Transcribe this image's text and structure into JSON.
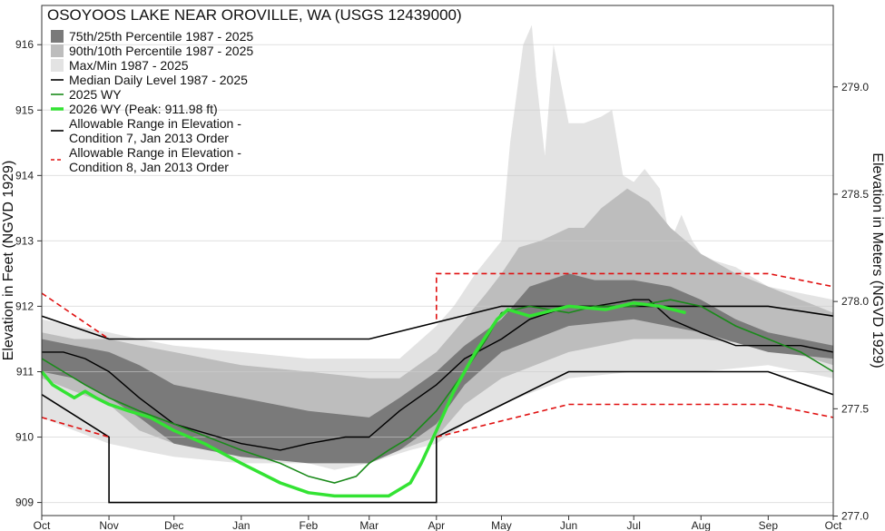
{
  "chart_data": {
    "type": "area",
    "title": "OSOYOOS LAKE NEAR OROVILLE, WA (USGS 12439000)",
    "ylabel": "Elevation in Feet (NGVD 1929)",
    "y2label": "Elevation in Meters (NGVD 1929)",
    "ylim": [
      908.8,
      916.6
    ],
    "yticks": [
      909,
      910,
      911,
      912,
      913,
      914,
      915,
      916
    ],
    "y2ticks": [
      277.0,
      277.5,
      278.0,
      278.5,
      279.0
    ],
    "xlim": [
      0,
      365
    ],
    "xticks": [
      {
        "label": "Oct",
        "day": 0
      },
      {
        "label": "Nov",
        "day": 31
      },
      {
        "label": "Dec",
        "day": 61
      },
      {
        "label": "Jan",
        "day": 92
      },
      {
        "label": "Feb",
        "day": 123
      },
      {
        "label": "Mar",
        "day": 151
      },
      {
        "label": "Apr",
        "day": 182
      },
      {
        "label": "May",
        "day": 212
      },
      {
        "label": "Jun",
        "day": 243
      },
      {
        "label": "Jul",
        "day": 273
      },
      {
        "label": "Aug",
        "day": 304
      },
      {
        "label": "Sep",
        "day": 335
      },
      {
        "label": "Oct",
        "day": 365
      }
    ],
    "grid": true,
    "legend_position": "top-left",
    "colors": {
      "maxmin": "#e3e3e3",
      "p90": "#bdbdbd",
      "p75": "#7a7a7a",
      "median": "#000000",
      "wy2025": "#1a8a1a",
      "wy2026": "#33e333",
      "cond7": "#000000",
      "cond8": "#e01010",
      "grid": "#cccccc"
    },
    "legend": [
      {
        "key": "p75",
        "label": "75th/25th Percentile 1987 - 2025",
        "style": "box"
      },
      {
        "key": "p90",
        "label": "90th/10th Percentile 1987 - 2025",
        "style": "box"
      },
      {
        "key": "maxmin",
        "label": "Max/Min 1987 - 2025",
        "style": "box"
      },
      {
        "key": "median",
        "label": "Median Daily Level 1987 - 2025",
        "style": "line"
      },
      {
        "key": "wy2025",
        "label": "2025  WY",
        "style": "line"
      },
      {
        "key": "wy2026",
        "label": "2026 WY (Peak: 911.98 ft)",
        "style": "thickline"
      },
      {
        "key": "cond7",
        "label": "Allowable Range in Elevation -",
        "label2": "Condition 7, Jan 2013 Order",
        "style": "line"
      },
      {
        "key": "cond8",
        "label": "Allowable Range in Elevation -",
        "label2": "Condition 8, Jan 2013 Order",
        "style": "dashed"
      }
    ],
    "series": [
      {
        "key": "maxmin_upper",
        "x": [
          0,
          15,
          31,
          45,
          61,
          92,
          123,
          151,
          165,
          182,
          190,
          200,
          212,
          216,
          222,
          226,
          228,
          232,
          236,
          243,
          250,
          258,
          263,
          268,
          273,
          278,
          285,
          290,
          295,
          300,
          304,
          310,
          320,
          335,
          350,
          365
        ],
        "y": [
          911.8,
          911.7,
          911.6,
          911.5,
          911.4,
          911.3,
          911.2,
          911.2,
          911.2,
          911.7,
          912.0,
          912.5,
          913.0,
          914.5,
          916.0,
          916.3,
          915.5,
          914.3,
          916.0,
          914.8,
          914.8,
          914.9,
          915.0,
          914.0,
          913.9,
          914.1,
          913.8,
          913.0,
          913.4,
          913.0,
          912.8,
          912.7,
          912.6,
          912.3,
          912.2,
          912.1
        ]
      },
      {
        "key": "maxmin_lower",
        "x": [
          0,
          15,
          31,
          45,
          61,
          92,
          110,
          123,
          135,
          151,
          160,
          170,
          182,
          195,
          212,
          243,
          273,
          304,
          335,
          365
        ],
        "y": [
          910.3,
          910.1,
          909.9,
          909.8,
          909.7,
          909.6,
          909.6,
          909.6,
          909.5,
          909.6,
          909.7,
          909.8,
          909.9,
          910.2,
          910.5,
          910.9,
          911.0,
          911.0,
          911.1,
          910.9
        ]
      },
      {
        "key": "p90_upper",
        "x": [
          0,
          15,
          31,
          45,
          61,
          92,
          123,
          151,
          165,
          182,
          195,
          205,
          212,
          220,
          230,
          243,
          250,
          258,
          270,
          280,
          290,
          304,
          320,
          335,
          350,
          365
        ],
        "y": [
          911.6,
          911.5,
          911.5,
          911.4,
          911.3,
          911.1,
          911.0,
          910.9,
          910.9,
          911.3,
          911.8,
          912.2,
          912.5,
          912.9,
          913.0,
          913.2,
          913.2,
          913.5,
          913.8,
          913.6,
          913.2,
          912.8,
          912.5,
          912.3,
          912.1,
          911.9
        ]
      },
      {
        "key": "p90_lower",
        "x": [
          0,
          15,
          31,
          45,
          61,
          92,
          123,
          151,
          165,
          182,
          195,
          212,
          243,
          273,
          304,
          335,
          365
        ],
        "y": [
          910.9,
          910.7,
          910.5,
          910.1,
          909.9,
          909.8,
          909.7,
          909.7,
          909.8,
          910.0,
          910.5,
          910.9,
          911.3,
          911.5,
          911.5,
          911.4,
          911.1
        ]
      },
      {
        "key": "p75_upper",
        "x": [
          0,
          15,
          31,
          45,
          61,
          92,
          123,
          151,
          165,
          182,
          195,
          212,
          225,
          243,
          255,
          273,
          290,
          304,
          320,
          335,
          350,
          365
        ],
        "y": [
          911.5,
          911.4,
          911.3,
          911.1,
          910.8,
          910.6,
          910.4,
          910.3,
          910.6,
          911.0,
          911.4,
          911.8,
          912.3,
          912.5,
          912.4,
          912.4,
          912.3,
          912.1,
          911.8,
          911.6,
          911.5,
          911.4
        ]
      },
      {
        "key": "p75_lower",
        "x": [
          0,
          15,
          31,
          45,
          61,
          92,
          123,
          151,
          165,
          182,
          195,
          212,
          243,
          273,
          304,
          335,
          365
        ],
        "y": [
          911.0,
          910.9,
          910.6,
          910.3,
          909.9,
          909.7,
          909.6,
          909.6,
          909.8,
          910.2,
          910.8,
          911.3,
          911.7,
          911.8,
          911.6,
          911.3,
          911.2
        ]
      },
      {
        "key": "median",
        "x": [
          0,
          10,
          20,
          31,
          45,
          61,
          92,
          110,
          123,
          140,
          151,
          165,
          182,
          195,
          212,
          225,
          243,
          255,
          273,
          280,
          290,
          304,
          320,
          335,
          350,
          365
        ],
        "y": [
          911.3,
          911.3,
          911.2,
          911.0,
          910.6,
          910.2,
          909.9,
          909.8,
          909.9,
          910.0,
          910.0,
          910.4,
          910.8,
          911.2,
          911.5,
          911.8,
          912.0,
          912.0,
          912.1,
          912.1,
          911.8,
          911.6,
          911.4,
          911.4,
          911.4,
          911.3
        ]
      },
      {
        "key": "wy2025",
        "x": [
          0,
          10,
          20,
          31,
          45,
          61,
          92,
          110,
          123,
          135,
          145,
          151,
          160,
          170,
          182,
          195,
          205,
          212,
          225,
          243,
          255,
          273,
          290,
          304,
          320,
          335,
          350,
          365
        ],
        "y": [
          911.2,
          911.0,
          910.8,
          910.6,
          910.4,
          910.2,
          909.8,
          909.6,
          909.4,
          909.3,
          909.4,
          909.6,
          909.8,
          910.0,
          910.4,
          911.0,
          911.5,
          911.9,
          912.0,
          911.9,
          912.0,
          912.0,
          912.1,
          912.0,
          911.7,
          911.5,
          911.3,
          911.0
        ]
      },
      {
        "key": "wy2026",
        "x": [
          0,
          5,
          10,
          15,
          20,
          25,
          31,
          40,
          50,
          61,
          75,
          92,
          110,
          123,
          135,
          145,
          160,
          170,
          175,
          182,
          190,
          200,
          210,
          215,
          225,
          243,
          260,
          273,
          285,
          297
        ],
        "y": [
          911.0,
          910.8,
          910.7,
          910.6,
          910.7,
          910.6,
          910.5,
          910.4,
          910.3,
          910.1,
          909.9,
          909.6,
          909.3,
          909.15,
          909.1,
          909.1,
          909.1,
          909.3,
          909.6,
          910.1,
          910.7,
          911.3,
          911.8,
          911.95,
          911.85,
          912.0,
          911.95,
          912.05,
          912.0,
          911.9
        ]
      },
      {
        "key": "cond7_upper",
        "x": [
          0,
          31,
          151,
          212,
          243,
          335,
          365
        ],
        "y": [
          911.85,
          911.5,
          911.5,
          912.0,
          912.0,
          912.0,
          911.85
        ]
      },
      {
        "key": "cond7_lower",
        "x": [
          0,
          31,
          31,
          182,
          182,
          243,
          335,
          365
        ],
        "y": [
          910.65,
          910.0,
          909.0,
          909.0,
          910.0,
          911.0,
          911.0,
          910.65
        ]
      },
      {
        "key": "cond8_upper",
        "x": [
          0,
          31
        ],
        "y": [
          912.2,
          911.5
        ]
      },
      {
        "key": "cond8_upper_b",
        "x": [
          182,
          182,
          335,
          365
        ],
        "y": [
          911.8,
          912.5,
          912.5,
          912.3
        ]
      },
      {
        "key": "cond8_lower",
        "x": [
          0,
          31
        ],
        "y": [
          910.3,
          910.0
        ]
      },
      {
        "key": "cond8_lower_b",
        "x": [
          182,
          243,
          335,
          365
        ],
        "y": [
          910.0,
          910.5,
          910.5,
          910.3
        ]
      }
    ]
  }
}
